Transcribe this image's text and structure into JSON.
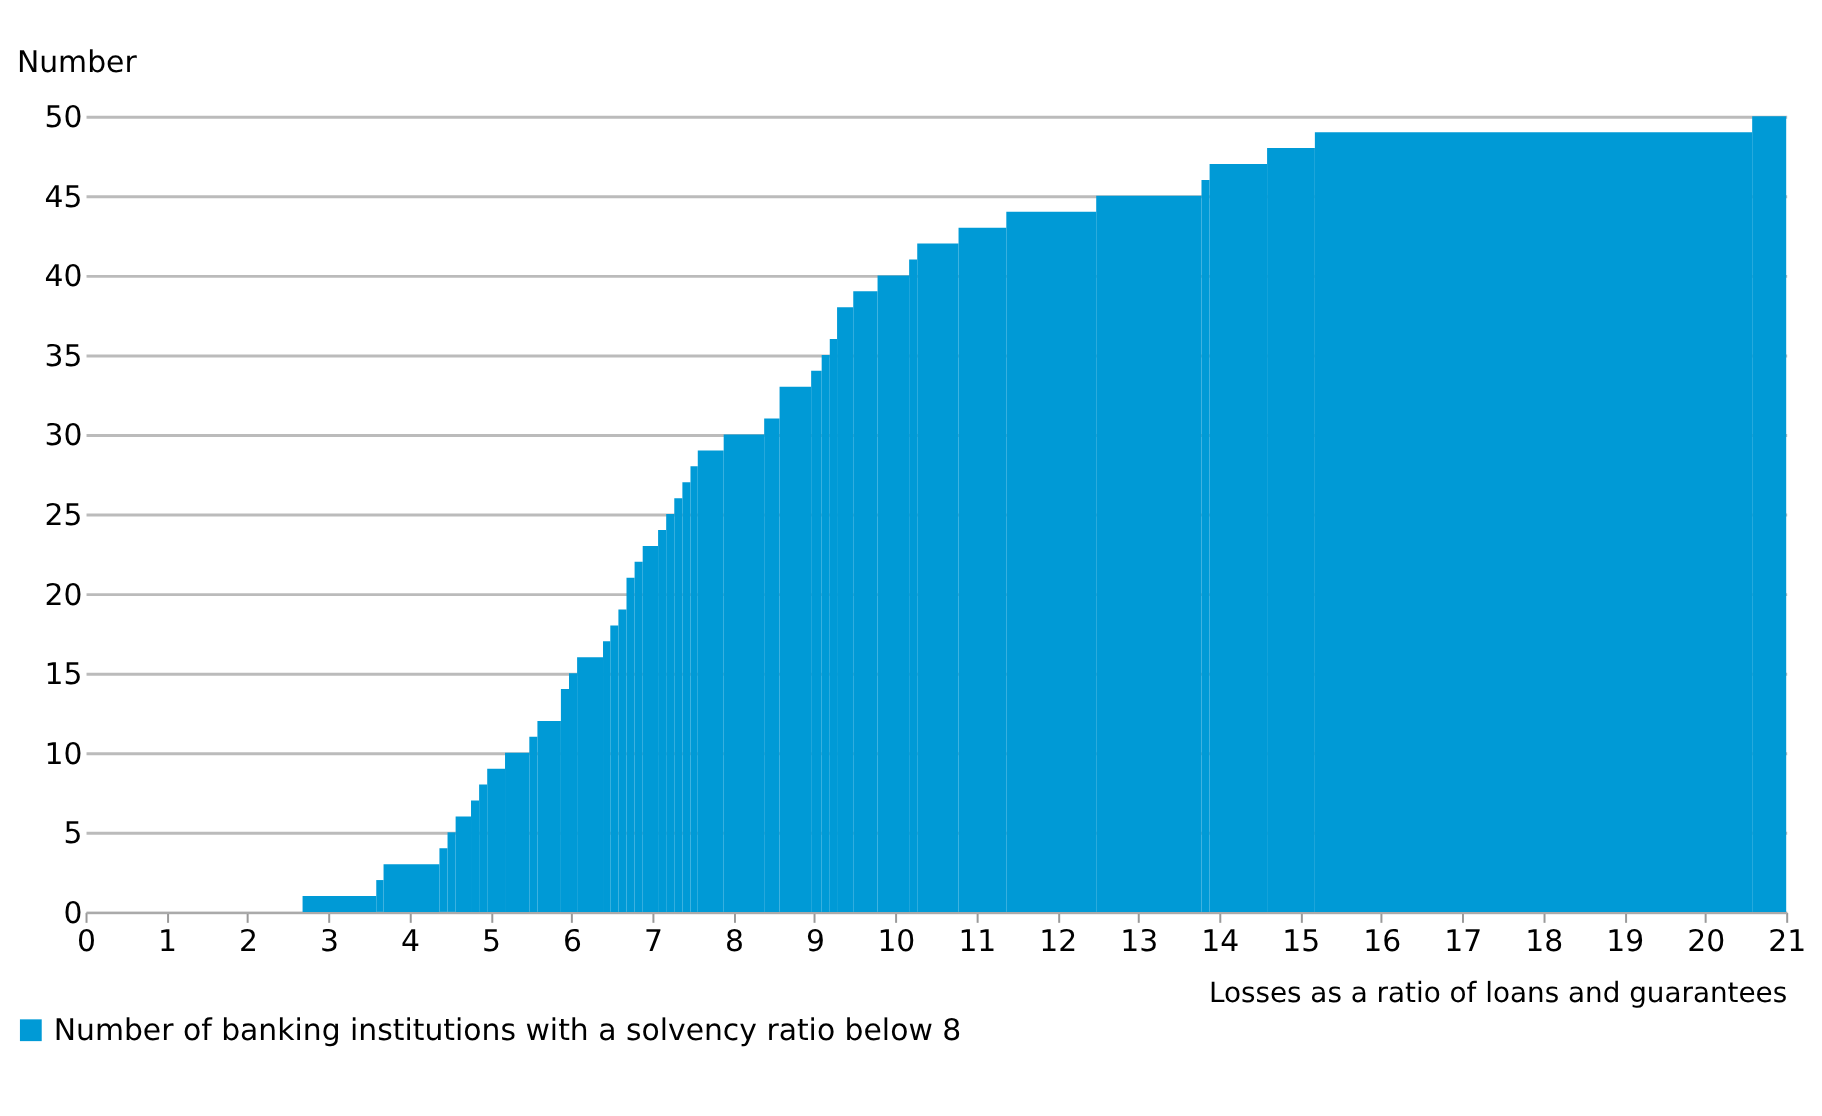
{
  "chart_data": {
    "type": "histogram",
    "xlabel": "Losses as a ratio of loans and guarantees",
    "ylabel": "Number",
    "bins": [
      2.68,
      3.59,
      3.68,
      4.37,
      4.47,
      4.57,
      4.76,
      4.86,
      4.96,
      5.18,
      5.48,
      5.58,
      5.87,
      5.97,
      6.07,
      6.39,
      6.48,
      6.58,
      6.68,
      6.78,
      6.88,
      7.07,
      7.17,
      7.27,
      7.37,
      7.47,
      7.56,
      7.88,
      8.38,
      8.57,
      8.96,
      9.09,
      9.19,
      9.28,
      9.48,
      9.78,
      10.17,
      10.27,
      10.78,
      11.37,
      12.48,
      13.78,
      13.88,
      14.59,
      15.18,
      20.58,
      21
    ],
    "series": [
      {
        "name": "Number of banking institutions with a solvency ratio below 8",
        "color": "#009ad6",
        "values": [
          1,
          2,
          3,
          4,
          5,
          6,
          7,
          8,
          9,
          10,
          11,
          12,
          14,
          15,
          16,
          17,
          18,
          19,
          21,
          22,
          23,
          24,
          25,
          26,
          27,
          28,
          29,
          30,
          31,
          33,
          34,
          35,
          36,
          38,
          39,
          40,
          41,
          42,
          43,
          44,
          45,
          46,
          47,
          48,
          49,
          50
        ]
      }
    ],
    "xlim": [
      0,
      21
    ],
    "xticks": [
      0,
      1,
      2,
      3,
      4,
      5,
      6,
      7,
      8,
      9,
      10,
      11,
      12,
      13,
      14,
      15,
      16,
      17,
      18,
      19,
      20,
      21
    ],
    "ylim": [
      0,
      50
    ],
    "yticks": [
      0,
      5,
      10,
      15,
      20,
      25,
      30,
      35,
      40,
      45,
      50
    ],
    "grid": "y",
    "legend": "bottom left"
  }
}
